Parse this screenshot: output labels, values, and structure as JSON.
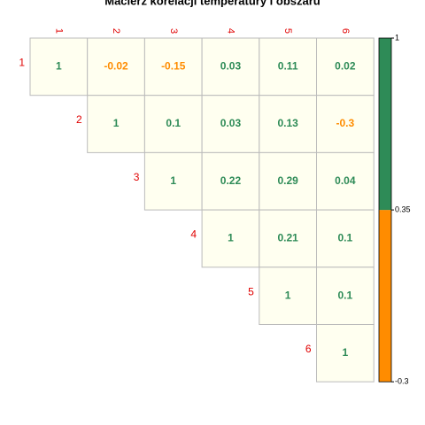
{
  "chart_data": {
    "type": "corrplot",
    "title": "Macierz korelacji temperatury i obszaru",
    "categories": [
      "1",
      "2",
      "3",
      "4",
      "5",
      "6"
    ],
    "values": [
      [
        1,
        -0.02,
        -0.15,
        0.03,
        0.11,
        0.02
      ],
      [
        null,
        1,
        0.1,
        0.03,
        0.13,
        -0.3
      ],
      [
        null,
        null,
        1,
        0.22,
        0.29,
        0.04
      ],
      [
        null,
        null,
        null,
        1,
        0.21,
        0.1
      ],
      [
        null,
        null,
        null,
        null,
        1,
        0.1
      ],
      [
        null,
        null,
        null,
        null,
        null,
        1
      ]
    ],
    "colors": [
      "#FF8C00",
      "#2E8B57"
    ],
    "cell_color": "#FFFFF0",
    "label_color": "#E00000",
    "ylim": [
      -0.3,
      1
    ],
    "yticks": [
      -0.3,
      0.35,
      1
    ]
  }
}
